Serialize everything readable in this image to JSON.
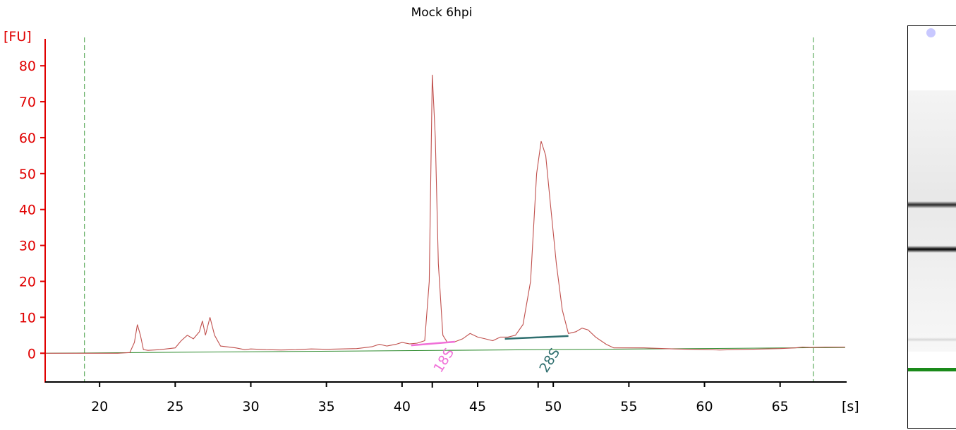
{
  "chart_data": {
    "type": "line",
    "title": "Mock 6hpi",
    "xlabel": "[s]",
    "ylabel": "[FU]",
    "xlim": [
      16.4,
      69.4
    ],
    "ylim": [
      -8,
      87.5
    ],
    "x_ticks": [
      20,
      25,
      30,
      35,
      40,
      45,
      50,
      55,
      60,
      65
    ],
    "y_ticks": [
      0,
      10,
      20,
      30,
      40,
      50,
      60,
      70,
      80
    ],
    "grid": false,
    "colors": {
      "trace": "#c0504d",
      "baseline": "#2e8b2e",
      "axis_y": "#e00000",
      "marker_18s": "#f070d8",
      "marker_28s": "#2f6f6f",
      "dashed_line": "#3c9a3c"
    },
    "series": [
      {
        "points": [
          [
            16.4,
            0
          ],
          [
            21.2,
            0
          ],
          [
            22.0,
            0.2
          ],
          [
            22.3,
            3
          ],
          [
            22.5,
            8
          ],
          [
            22.7,
            5
          ],
          [
            22.9,
            1
          ],
          [
            23.2,
            0.8
          ],
          [
            24.0,
            1
          ],
          [
            25.0,
            1.5
          ],
          [
            25.4,
            3.5
          ],
          [
            25.8,
            5
          ],
          [
            26.2,
            4
          ],
          [
            26.6,
            6
          ],
          [
            26.8,
            9
          ],
          [
            27.0,
            5
          ],
          [
            27.3,
            10
          ],
          [
            27.6,
            5
          ],
          [
            28.0,
            2
          ],
          [
            29.0,
            1.5
          ],
          [
            29.6,
            1
          ],
          [
            30.0,
            1.2
          ],
          [
            31.0,
            1
          ],
          [
            32.0,
            0.9
          ],
          [
            33.0,
            1
          ],
          [
            34.0,
            1.2
          ],
          [
            35.0,
            1.1
          ],
          [
            36.0,
            1.2
          ],
          [
            37.0,
            1.3
          ],
          [
            38.0,
            1.8
          ],
          [
            38.5,
            2.5
          ],
          [
            39.0,
            2
          ],
          [
            39.6,
            2.5
          ],
          [
            40.0,
            3
          ],
          [
            40.5,
            2.6
          ],
          [
            41.0,
            2.8
          ],
          [
            41.5,
            3.5
          ],
          [
            41.8,
            20
          ],
          [
            42.0,
            77.5
          ],
          [
            42.2,
            60
          ],
          [
            42.4,
            25
          ],
          [
            42.7,
            5
          ],
          [
            43.0,
            3
          ],
          [
            43.5,
            3.2
          ],
          [
            44.0,
            4
          ],
          [
            44.5,
            5.5
          ],
          [
            45.0,
            4.5
          ],
          [
            45.5,
            4
          ],
          [
            46.0,
            3.5
          ],
          [
            46.5,
            4.5
          ],
          [
            47.0,
            4.5
          ],
          [
            47.5,
            5
          ],
          [
            48.0,
            8
          ],
          [
            48.5,
            20
          ],
          [
            48.9,
            50
          ],
          [
            49.2,
            59
          ],
          [
            49.5,
            55
          ],
          [
            49.8,
            42
          ],
          [
            50.2,
            25
          ],
          [
            50.6,
            12
          ],
          [
            51.0,
            5.5
          ],
          [
            51.5,
            6
          ],
          [
            51.9,
            7
          ],
          [
            52.3,
            6.5
          ],
          [
            52.8,
            4.5
          ],
          [
            53.5,
            2.5
          ],
          [
            54.0,
            1.5
          ],
          [
            56.0,
            1.5
          ],
          [
            58.0,
            1.2
          ],
          [
            60.0,
            1
          ],
          [
            61.0,
            0.9
          ],
          [
            62.0,
            1
          ],
          [
            63.0,
            1.1
          ],
          [
            64.0,
            1.2
          ],
          [
            65.0,
            1.3
          ],
          [
            66.0,
            1.5
          ],
          [
            66.5,
            1.7
          ],
          [
            67.0,
            1.6
          ],
          [
            68.0,
            1.7
          ],
          [
            69.3,
            1.7
          ]
        ]
      }
    ],
    "baseline": [
      [
        16.4,
        0
      ],
      [
        69.3,
        1.6
      ]
    ],
    "vertical_markers": [
      19.0,
      67.2
    ],
    "peak_markers": [
      {
        "label": "18S",
        "x": 42.0,
        "start": [
          40.6,
          2.2
        ],
        "end": [
          43.5,
          3.2
        ]
      },
      {
        "label": "28S",
        "x": 49.0,
        "start": [
          46.8,
          4.0
        ],
        "end": [
          51.0,
          4.8
        ]
      }
    ]
  },
  "gel": {
    "bands": [
      {
        "pos": 0.445,
        "intensity": 0.9,
        "color": "#222222"
      },
      {
        "pos": 0.555,
        "intensity": 1.0,
        "color": "#111111"
      },
      {
        "pos": 0.78,
        "intensity": 0.25,
        "color": "#888888"
      },
      {
        "pos": 0.855,
        "intensity": 1.0,
        "color": "#1a8a1a"
      }
    ],
    "top_marker_color": "#c8c8ff"
  }
}
